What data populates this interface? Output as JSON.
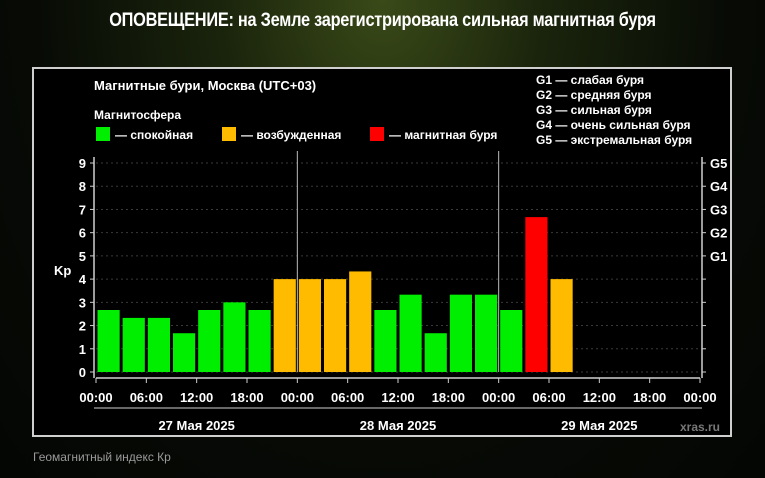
{
  "alert": {
    "title": "ОПОВЕЩЕНИЕ: на Земле зарегистрирована сильная магнитная буря"
  },
  "caption": "Геомагнитный индекс Кр",
  "chart_data": {
    "type": "bar",
    "title": "Магнитные бури, Москва (UTC+03)",
    "legend_title": "Магнитосфера",
    "legend": [
      {
        "label": "— спокойная",
        "color": "#00ee00"
      },
      {
        "label": "— возбужденная",
        "color": "#ffbb00"
      },
      {
        "label": "— магнитная буря",
        "color": "#ff0000"
      }
    ],
    "storm_levels": [
      "G1 — слабая буря",
      "G2 — средняя буря",
      "G3 — сильная буря",
      "G4 — очень сильная буря",
      "G5 — экстремальная буря"
    ],
    "ylabel": "Kp",
    "ylim": [
      0,
      9
    ],
    "yticks": [
      "0",
      "1",
      "2",
      "3",
      "4",
      "5",
      "6",
      "7",
      "8",
      "9"
    ],
    "right_ticks": [
      {
        "label": "G1",
        "value": 5
      },
      {
        "label": "G2",
        "value": 6
      },
      {
        "label": "G3",
        "value": 7
      },
      {
        "label": "G4",
        "value": 8
      },
      {
        "label": "G5",
        "value": 9
      }
    ],
    "xticks": [
      "00:00",
      "06:00",
      "12:00",
      "18:00",
      "00:00",
      "06:00",
      "12:00",
      "18:00",
      "00:00",
      "06:00",
      "12:00",
      "18:00",
      "00:00"
    ],
    "days": [
      "27 Мая 2025",
      "28 Мая 2025",
      "29 Мая 2025"
    ],
    "slots_total": 24,
    "values": [
      2.67,
      2.33,
      2.33,
      1.67,
      2.67,
      3.0,
      2.67,
      4.0,
      4.0,
      4.0,
      4.33,
      2.67,
      3.33,
      1.67,
      3.33,
      3.33,
      2.67,
      6.67,
      4.0
    ],
    "colors": [
      "#00ee00",
      "#00ee00",
      "#00ee00",
      "#00ee00",
      "#00ee00",
      "#00ee00",
      "#00ee00",
      "#ffbb00",
      "#ffbb00",
      "#ffbb00",
      "#ffbb00",
      "#00ee00",
      "#00ee00",
      "#00ee00",
      "#00ee00",
      "#00ee00",
      "#00ee00",
      "#ff0000",
      "#ffbb00"
    ],
    "grid": true,
    "watermark": "xras.ru"
  }
}
